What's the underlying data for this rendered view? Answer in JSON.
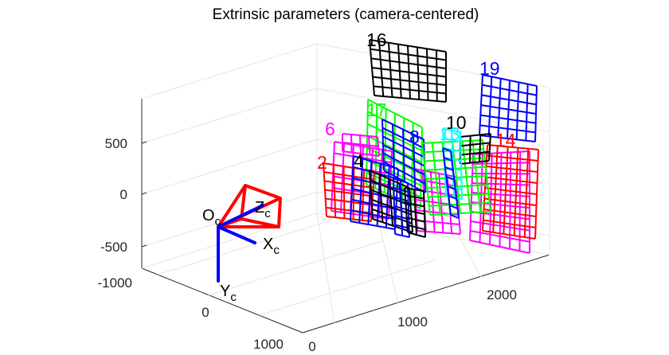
{
  "chart_data": {
    "type": "scatter",
    "title": "Extrinsic parameters (camera-centered)",
    "view": "3d",
    "grid": true,
    "axes": {
      "x_ticks": [
        "-1000",
        "0",
        "1000"
      ],
      "y_ticks": [
        "0",
        "1000",
        "2000"
      ],
      "z_ticks": [
        "500",
        "0",
        "-500"
      ]
    },
    "camera": {
      "origin": {
        "main": "O",
        "sub": "c"
      },
      "x_axis": {
        "main": "X",
        "sub": "c"
      },
      "y_axis": {
        "main": "Y",
        "sub": "c"
      },
      "z_axis": {
        "main": "Z",
        "sub": "c"
      },
      "color": "#ff0000",
      "axis_color": "#0000ff"
    },
    "boards": [
      {
        "id": "16",
        "color": "#000000"
      },
      {
        "id": "19",
        "color": "#0000ff"
      },
      {
        "id": "17",
        "color": "#00ff00"
      },
      {
        "id": "6",
        "color": "#ff00ff"
      },
      {
        "id": "2",
        "color": "#ff0000"
      },
      {
        "id": "10",
        "color": "#000000"
      },
      {
        "id": "13",
        "color": "#00ffff"
      },
      {
        "id": "14",
        "color": "#ff0000"
      },
      {
        "id": "8",
        "color": "#0000ff"
      },
      {
        "id": "4",
        "color": "#000000"
      }
    ]
  }
}
